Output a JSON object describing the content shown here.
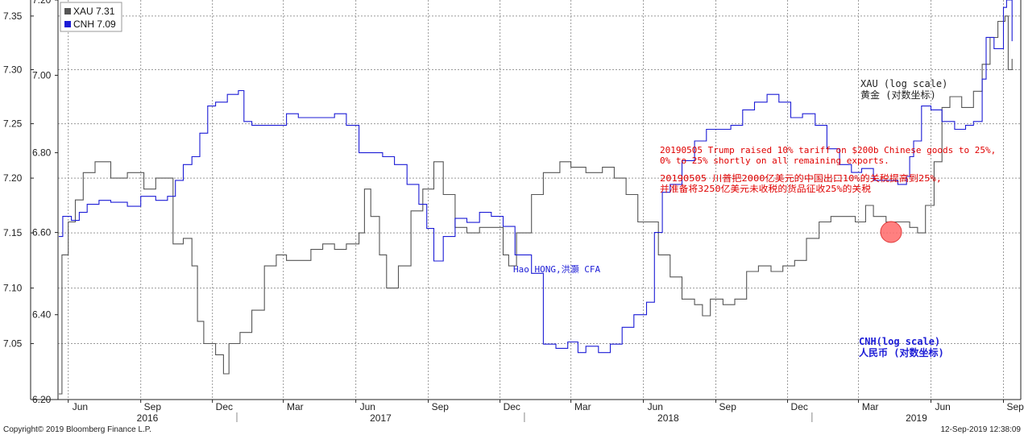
{
  "chart_data": {
    "type": "line",
    "series": [
      {
        "name": "XAU 7.31",
        "color": "#555555",
        "scale": "log",
        "axis": "left-outer",
        "points": [
          [
            "2016-05-20",
            7.005
          ],
          [
            "2016-05-24",
            7.13
          ],
          [
            "2016-06-01",
            7.16
          ],
          [
            "2016-06-10",
            7.18
          ],
          [
            "2016-06-20",
            7.205
          ],
          [
            "2016-07-05",
            7.215
          ],
          [
            "2016-07-25",
            7.2
          ],
          [
            "2016-08-15",
            7.205
          ],
          [
            "2016-09-05",
            7.19
          ],
          [
            "2016-09-20",
            7.2
          ],
          [
            "2016-10-05",
            7.2
          ],
          [
            "2016-10-12",
            7.14
          ],
          [
            "2016-10-25",
            7.145
          ],
          [
            "2016-11-05",
            7.12
          ],
          [
            "2016-11-12",
            7.07
          ],
          [
            "2016-11-20",
            7.05
          ],
          [
            "2016-12-05",
            7.04
          ],
          [
            "2016-12-15",
            7.023
          ],
          [
            "2016-12-22",
            7.05
          ],
          [
            "2017-01-05",
            7.06
          ],
          [
            "2017-01-20",
            7.08
          ],
          [
            "2017-02-05",
            7.12
          ],
          [
            "2017-02-20",
            7.13
          ],
          [
            "2017-03-05",
            7.125
          ],
          [
            "2017-03-20",
            7.125
          ],
          [
            "2017-04-05",
            7.135
          ],
          [
            "2017-04-20",
            7.14
          ],
          [
            "2017-05-05",
            7.135
          ],
          [
            "2017-05-20",
            7.14
          ],
          [
            "2017-06-05",
            7.15
          ],
          [
            "2017-06-12",
            7.19
          ],
          [
            "2017-06-20",
            7.165
          ],
          [
            "2017-07-01",
            7.13
          ],
          [
            "2017-07-10",
            7.1
          ],
          [
            "2017-07-25",
            7.12
          ],
          [
            "2017-08-10",
            7.17
          ],
          [
            "2017-08-25",
            7.19
          ],
          [
            "2017-09-08",
            7.215
          ],
          [
            "2017-09-20",
            7.185
          ],
          [
            "2017-10-05",
            7.155
          ],
          [
            "2017-10-20",
            7.15
          ],
          [
            "2017-11-05",
            7.155
          ],
          [
            "2017-11-20",
            7.155
          ],
          [
            "2017-12-05",
            7.13
          ],
          [
            "2017-12-12",
            7.12
          ],
          [
            "2017-12-22",
            7.15
          ],
          [
            "2018-01-10",
            7.185
          ],
          [
            "2018-01-25",
            7.205
          ],
          [
            "2018-02-15",
            7.215
          ],
          [
            "2018-03-01",
            7.21
          ],
          [
            "2018-03-20",
            7.205
          ],
          [
            "2018-04-10",
            7.21
          ],
          [
            "2018-04-25",
            7.2
          ],
          [
            "2018-05-10",
            7.185
          ],
          [
            "2018-05-25",
            7.16
          ],
          [
            "2018-06-08",
            7.16
          ],
          [
            "2018-06-20",
            7.13
          ],
          [
            "2018-07-05",
            7.11
          ],
          [
            "2018-07-20",
            7.09
          ],
          [
            "2018-08-05",
            7.085
          ],
          [
            "2018-08-15",
            7.075
          ],
          [
            "2018-08-25",
            7.09
          ],
          [
            "2018-09-10",
            7.085
          ],
          [
            "2018-09-25",
            7.09
          ],
          [
            "2018-10-10",
            7.115
          ],
          [
            "2018-10-25",
            7.12
          ],
          [
            "2018-11-10",
            7.115
          ],
          [
            "2018-11-25",
            7.12
          ],
          [
            "2018-12-10",
            7.125
          ],
          [
            "2018-12-25",
            7.145
          ],
          [
            "2019-01-10",
            7.16
          ],
          [
            "2019-01-25",
            7.165
          ],
          [
            "2019-02-10",
            7.165
          ],
          [
            "2019-02-25",
            7.16
          ],
          [
            "2019-03-10",
            7.175
          ],
          [
            "2019-03-20",
            7.165
          ],
          [
            "2019-04-05",
            7.16
          ],
          [
            "2019-04-20",
            7.16
          ],
          [
            "2019-05-05",
            7.155
          ],
          [
            "2019-05-15",
            7.15
          ],
          [
            "2019-05-25",
            7.175
          ],
          [
            "2019-06-05",
            7.215
          ],
          [
            "2019-06-15",
            7.265
          ],
          [
            "2019-06-25",
            7.275
          ],
          [
            "2019-07-10",
            7.265
          ],
          [
            "2019-07-25",
            7.28
          ],
          [
            "2019-08-05",
            7.305
          ],
          [
            "2019-08-15",
            7.33
          ],
          [
            "2019-08-25",
            7.345
          ],
          [
            "2019-09-03",
            7.35
          ],
          [
            "2019-09-07",
            7.3
          ],
          [
            "2019-09-12",
            7.31
          ]
        ]
      },
      {
        "name": "CNH 7.09",
        "color": "#1c1cd6",
        "scale": "log",
        "axis": "left-inner",
        "points": [
          [
            "2016-05-20",
            6.59
          ],
          [
            "2016-05-25",
            6.64
          ],
          [
            "2016-06-05",
            6.63
          ],
          [
            "2016-06-15",
            6.65
          ],
          [
            "2016-06-25",
            6.67
          ],
          [
            "2016-07-10",
            6.68
          ],
          [
            "2016-07-25",
            6.675
          ],
          [
            "2016-08-15",
            6.665
          ],
          [
            "2016-09-01",
            6.69
          ],
          [
            "2016-09-20",
            6.68
          ],
          [
            "2016-10-05",
            6.69
          ],
          [
            "2016-10-15",
            6.73
          ],
          [
            "2016-10-25",
            6.77
          ],
          [
            "2016-11-05",
            6.79
          ],
          [
            "2016-11-15",
            6.85
          ],
          [
            "2016-11-25",
            6.92
          ],
          [
            "2016-12-05",
            6.93
          ],
          [
            "2016-12-20",
            6.95
          ],
          [
            "2017-01-03",
            6.96
          ],
          [
            "2017-01-10",
            6.88
          ],
          [
            "2017-01-20",
            6.87
          ],
          [
            "2017-02-05",
            6.87
          ],
          [
            "2017-02-20",
            6.87
          ],
          [
            "2017-03-05",
            6.9
          ],
          [
            "2017-03-20",
            6.89
          ],
          [
            "2017-04-05",
            6.89
          ],
          [
            "2017-04-20",
            6.89
          ],
          [
            "2017-05-05",
            6.9
          ],
          [
            "2017-05-20",
            6.87
          ],
          [
            "2017-06-05",
            6.8
          ],
          [
            "2017-06-20",
            6.8
          ],
          [
            "2017-07-05",
            6.79
          ],
          [
            "2017-07-20",
            6.77
          ],
          [
            "2017-08-05",
            6.72
          ],
          [
            "2017-08-20",
            6.67
          ],
          [
            "2017-08-30",
            6.61
          ],
          [
            "2017-09-08",
            6.53
          ],
          [
            "2017-09-20",
            6.59
          ],
          [
            "2017-10-05",
            6.635
          ],
          [
            "2017-10-20",
            6.625
          ],
          [
            "2017-11-05",
            6.65
          ],
          [
            "2017-11-20",
            6.64
          ],
          [
            "2017-12-05",
            6.615
          ],
          [
            "2017-12-20",
            6.545
          ],
          [
            "2018-01-10",
            6.5
          ],
          [
            "2018-01-25",
            6.33
          ],
          [
            "2018-02-10",
            6.32
          ],
          [
            "2018-02-25",
            6.335
          ],
          [
            "2018-03-10",
            6.31
          ],
          [
            "2018-03-20",
            6.325
          ],
          [
            "2018-04-05",
            6.31
          ],
          [
            "2018-04-20",
            6.33
          ],
          [
            "2018-05-05",
            6.37
          ],
          [
            "2018-05-20",
            6.4
          ],
          [
            "2018-06-05",
            6.43
          ],
          [
            "2018-06-15",
            6.6
          ],
          [
            "2018-06-25",
            6.7
          ],
          [
            "2018-07-05",
            6.72
          ],
          [
            "2018-07-20",
            6.78
          ],
          [
            "2018-08-05",
            6.83
          ],
          [
            "2018-08-20",
            6.86
          ],
          [
            "2018-09-05",
            6.86
          ],
          [
            "2018-09-20",
            6.87
          ],
          [
            "2018-10-05",
            6.91
          ],
          [
            "2018-10-20",
            6.93
          ],
          [
            "2018-11-05",
            6.95
          ],
          [
            "2018-11-20",
            6.93
          ],
          [
            "2018-12-05",
            6.89
          ],
          [
            "2018-12-20",
            6.9
          ],
          [
            "2019-01-05",
            6.87
          ],
          [
            "2019-01-20",
            6.81
          ],
          [
            "2019-02-05",
            6.77
          ],
          [
            "2019-02-20",
            6.75
          ],
          [
            "2019-03-05",
            6.76
          ],
          [
            "2019-03-20",
            6.73
          ],
          [
            "2019-04-05",
            6.73
          ],
          [
            "2019-04-20",
            6.72
          ],
          [
            "2019-05-01",
            6.74
          ],
          [
            "2019-05-05",
            6.79
          ],
          [
            "2019-05-10",
            6.83
          ],
          [
            "2019-05-20",
            6.92
          ],
          [
            "2019-06-01",
            6.91
          ],
          [
            "2019-06-15",
            6.88
          ],
          [
            "2019-07-01",
            6.86
          ],
          [
            "2019-07-15",
            6.87
          ],
          [
            "2019-07-25",
            6.88
          ],
          [
            "2019-08-05",
            6.99
          ],
          [
            "2019-08-10",
            7.1
          ],
          [
            "2019-08-20",
            7.07
          ],
          [
            "2019-09-01",
            7.18
          ],
          [
            "2019-09-05",
            7.2
          ],
          [
            "2019-09-12",
            7.09
          ]
        ]
      }
    ],
    "axes": {
      "left_outer": {
        "ticks": [
          "7.35",
          "7.30",
          "7.25",
          "7.20",
          "7.15",
          "7.10",
          "7.05"
        ],
        "range": [
          7.0,
          7.365
        ]
      },
      "left_inner": {
        "ticks": [
          "6.20",
          "6.40",
          "6.60",
          "6.80",
          "7.00",
          "7.20"
        ],
        "range": [
          6.2,
          7.2
        ]
      },
      "x": {
        "months": [
          "Jun",
          "Sep",
          "Dec",
          "Mar",
          "Jun",
          "Sep",
          "Dec",
          "Mar",
          "Jun",
          "Sep",
          "Dec",
          "Mar",
          "Jun",
          "Sep"
        ],
        "years": [
          "2016",
          "2017",
          "2018",
          "2019"
        ],
        "range": [
          "2016-05-19",
          "2019-09-23"
        ]
      }
    },
    "grid": true,
    "legend": {
      "placement": "top-left",
      "items": [
        {
          "text": "XAU 7.31",
          "color": "#555555"
        },
        {
          "text": "CNH 7.09",
          "color": "#1c1cd6"
        }
      ]
    },
    "annotations": {
      "tariff_en": [
        "20190505 Trump raised 10% tariff on $200b Chinese goods to 25%,",
        "0% to 25% shortly on all remaining exports."
      ],
      "tariff_cn": [
        "20190505 川普把2000亿美元的中国出口10%的关税提高到25%,",
        "并准备将3250亿美元未收税的货品征收25%的关税"
      ],
      "author": "Hao HONG,洪灝 CFA",
      "xau_label": [
        "XAU (log scale)",
        "黄金 (对数坐标)"
      ],
      "cnh_label": [
        "CNH(log scale)",
        "人民币 (对数坐标)"
      ],
      "annotation_color": "#e00000",
      "marker_color": "#ff6a6a"
    }
  },
  "footer": {
    "copyright": "Copyright© 2019 Bloomberg Finance L.P.",
    "timestamp": "12-Sep-2019 12:38:09"
  }
}
